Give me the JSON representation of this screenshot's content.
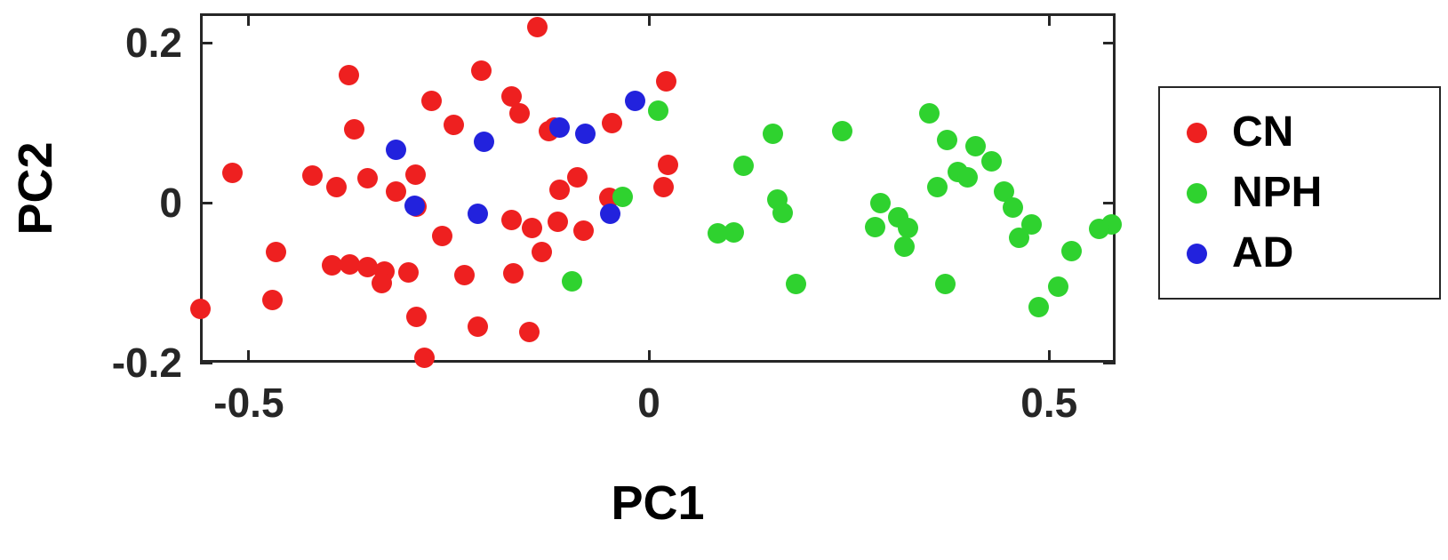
{
  "chart_data": {
    "type": "scatter",
    "title": "",
    "xlabel": "PC1",
    "ylabel": "PC2",
    "xlim": [
      -0.561,
      0.583
    ],
    "ylim": [
      -0.2,
      0.237
    ],
    "grid": false,
    "legend_position": "right-outside",
    "x_ticks": [
      {
        "value": -0.5,
        "label": "-0.5"
      },
      {
        "value": 0,
        "label": "0"
      },
      {
        "value": 0.5,
        "label": "0.5"
      }
    ],
    "y_ticks": [
      {
        "value": -0.2,
        "label": "-0.2"
      },
      {
        "value": 0,
        "label": "0"
      },
      {
        "value": 0.2,
        "label": "0.2"
      }
    ],
    "series": [
      {
        "name": "CN",
        "color": "#ee2020",
        "points": [
          [
            -0.14,
            0.22
          ],
          [
            -0.21,
            0.165
          ],
          [
            -0.375,
            0.16
          ],
          [
            0.022,
            0.152
          ],
          [
            -0.272,
            0.128
          ],
          [
            -0.172,
            0.133
          ],
          [
            -0.162,
            0.112
          ],
          [
            -0.244,
            0.098
          ],
          [
            -0.368,
            0.092
          ],
          [
            -0.118,
            0.094
          ],
          [
            -0.046,
            0.1
          ],
          [
            -0.52,
            0.037
          ],
          [
            -0.42,
            0.034
          ],
          [
            -0.39,
            0.02
          ],
          [
            -0.352,
            0.031
          ],
          [
            -0.316,
            0.014
          ],
          [
            -0.292,
            0.035
          ],
          [
            0.024,
            0.047
          ],
          [
            0.018,
            0.02
          ],
          [
            -0.112,
            0.016
          ],
          [
            -0.09,
            0.032
          ],
          [
            -0.29,
            -0.005
          ],
          [
            -0.05,
            0.006
          ],
          [
            -0.172,
            -0.022
          ],
          [
            -0.146,
            -0.032
          ],
          [
            -0.114,
            -0.024
          ],
          [
            -0.082,
            -0.035
          ],
          [
            -0.258,
            -0.042
          ],
          [
            -0.134,
            -0.062
          ],
          [
            -0.466,
            -0.062
          ],
          [
            -0.396,
            -0.078
          ],
          [
            -0.374,
            -0.077
          ],
          [
            -0.352,
            -0.08
          ],
          [
            -0.331,
            -0.086
          ],
          [
            -0.334,
            -0.101
          ],
          [
            -0.3,
            -0.087
          ],
          [
            -0.231,
            -0.09
          ],
          [
            -0.17,
            -0.088
          ],
          [
            -0.47,
            -0.122
          ],
          [
            -0.56,
            -0.133
          ],
          [
            -0.29,
            -0.143
          ],
          [
            -0.214,
            -0.155
          ],
          [
            -0.15,
            -0.162
          ],
          [
            -0.28,
            -0.194
          ],
          [
            -0.125,
            0.09
          ]
        ]
      },
      {
        "name": "NPH",
        "color": "#2fd22f",
        "points": [
          [
            0.012,
            0.115
          ],
          [
            0.155,
            0.086
          ],
          [
            0.242,
            0.09
          ],
          [
            0.35,
            0.112
          ],
          [
            0.372,
            0.078
          ],
          [
            0.408,
            0.071
          ],
          [
            0.118,
            0.046
          ],
          [
            0.386,
            0.038
          ],
          [
            0.36,
            0.02
          ],
          [
            0.398,
            0.032
          ],
          [
            0.444,
            0.014
          ],
          [
            0.16,
            0.004
          ],
          [
            0.167,
            -0.013
          ],
          [
            -0.033,
            0.007
          ],
          [
            0.289,
            0.0
          ],
          [
            0.311,
            -0.018
          ],
          [
            0.283,
            -0.03
          ],
          [
            0.324,
            -0.032
          ],
          [
            0.455,
            -0.006
          ],
          [
            0.478,
            -0.027
          ],
          [
            0.578,
            -0.027
          ],
          [
            0.562,
            -0.033
          ],
          [
            0.086,
            -0.038
          ],
          [
            0.106,
            -0.037
          ],
          [
            0.319,
            -0.055
          ],
          [
            0.462,
            -0.044
          ],
          [
            0.528,
            -0.06
          ],
          [
            0.184,
            -0.102
          ],
          [
            0.37,
            -0.102
          ],
          [
            0.511,
            -0.105
          ],
          [
            0.487,
            -0.13
          ],
          [
            -0.096,
            -0.098
          ],
          [
            0.428,
            0.052
          ]
        ]
      },
      {
        "name": "AD",
        "color": "#2222dd",
        "points": [
          [
            -0.316,
            0.066
          ],
          [
            -0.206,
            0.076
          ],
          [
            -0.112,
            0.094
          ],
          [
            -0.08,
            0.086
          ],
          [
            -0.017,
            0.128
          ],
          [
            -0.293,
            -0.004
          ],
          [
            -0.214,
            -0.014
          ],
          [
            -0.048,
            -0.014
          ]
        ]
      }
    ]
  }
}
